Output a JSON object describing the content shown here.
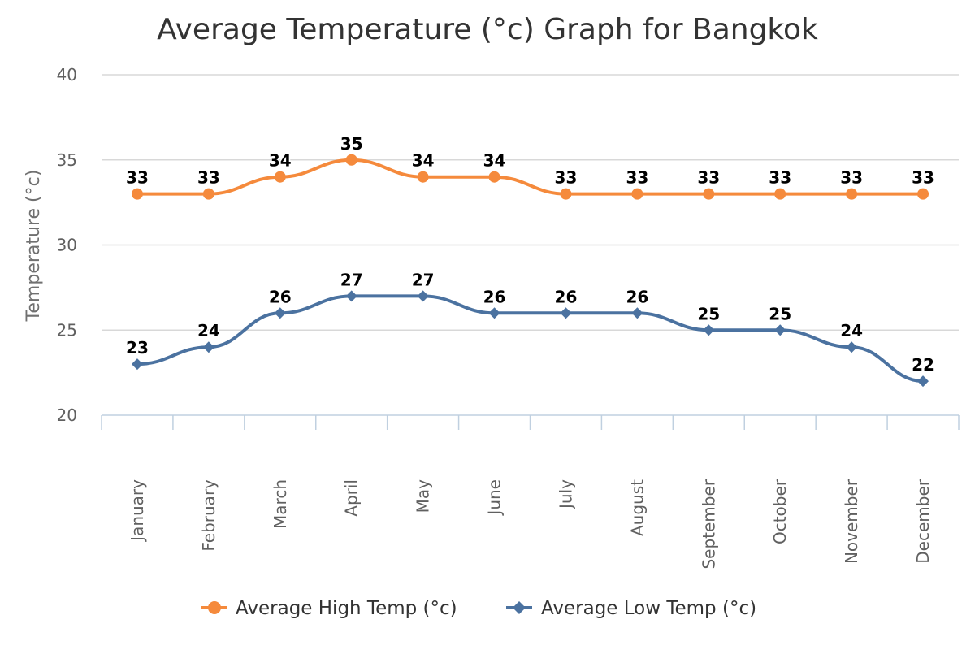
{
  "chart_data": {
    "type": "line",
    "title": "Average Temperature (°c) Graph for Bangkok",
    "xlabel": "",
    "ylabel": "Temperature (°c)",
    "ylim": [
      20,
      40
    ],
    "yticks": [
      20,
      25,
      30,
      35,
      40
    ],
    "grid": true,
    "legend_position": "bottom",
    "categories": [
      "January",
      "February",
      "March",
      "April",
      "May",
      "June",
      "July",
      "August",
      "September",
      "October",
      "November",
      "December"
    ],
    "series": [
      {
        "name": "Average High Temp (°c)",
        "color": "#f58a3c",
        "marker": "circle",
        "values": [
          33,
          33,
          34,
          35,
          34,
          34,
          33,
          33,
          33,
          33,
          33,
          33
        ]
      },
      {
        "name": "Average Low Temp (°c)",
        "color": "#4b72a0",
        "marker": "diamond",
        "values": [
          23,
          24,
          26,
          27,
          27,
          26,
          26,
          26,
          25,
          25,
          24,
          22
        ]
      }
    ]
  }
}
